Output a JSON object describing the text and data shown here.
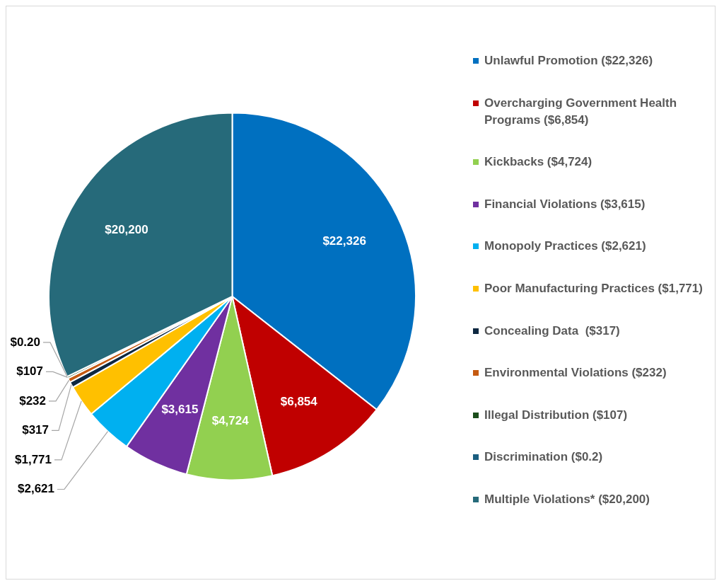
{
  "chart_data": {
    "type": "pie",
    "categories": [
      "Unlawful Promotion ($22,326)",
      "Overcharging Government Health Programs ($6,854)",
      "Kickbacks ($4,724)",
      "Financial Violations ($3,615)",
      "Monopoly Practices ($2,621)",
      "Poor Manufacturing Practices ($1,771)",
      "Concealing Data  ($317)",
      "Environmental Violations ($232)",
      "Illegal Distribution ($107)",
      "Discrimination ($0.2)",
      "Multiple Violations* ($20,200)"
    ],
    "values": [
      22326,
      6854,
      4724,
      3615,
      2621,
      1771,
      317,
      232,
      107,
      0.2,
      20200
    ],
    "value_labels": [
      "$22,326",
      "$6,854",
      "$4,724",
      "$3,615",
      "$2,621",
      "$1,771",
      "$317",
      "$232",
      "$107",
      "$0.20",
      "$20,200"
    ],
    "colors": [
      "#0070c0",
      "#c00000",
      "#92d050",
      "#7030a0",
      "#00b0f0",
      "#ffc000",
      "#0e2841",
      "#c55a11",
      "#1b4d1b",
      "#1a5e80",
      "#266a7a"
    ],
    "legend": "right"
  }
}
